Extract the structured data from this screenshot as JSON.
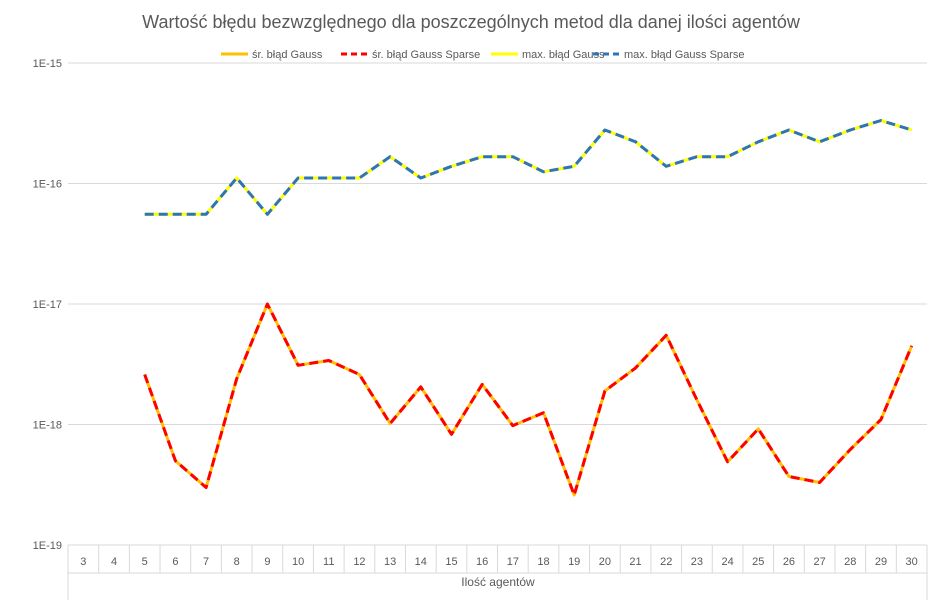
{
  "chart_data": {
    "type": "line",
    "title": "Wartość błędu bezwzględnego dla poszczególnych metod dla danej ilości agentów",
    "xlabel": "Ilość agentów",
    "ylabel": "",
    "y_scale": "log",
    "ylim": [
      1e-19,
      1e-15
    ],
    "y_tick_labels": [
      "1E-15",
      "1E-16",
      "1E-17",
      "1E-18",
      "1E-19"
    ],
    "grid": "horizontal",
    "legend": "top",
    "categories": [
      "3",
      "4",
      "5",
      "6",
      "7",
      "8",
      "9",
      "10",
      "11",
      "12",
      "13",
      "14",
      "15",
      "16",
      "17",
      "18",
      "19",
      "20",
      "21",
      "22",
      "23",
      "24",
      "25",
      "26",
      "27",
      "28",
      "29",
      "30"
    ],
    "series": [
      {
        "name": "śr. błąd Gauss",
        "color": "#FFC000",
        "dash": "solid",
        "values": [
          null,
          null,
          2.6e-18,
          5e-19,
          3e-19,
          2.4e-18,
          1e-17,
          3.1e-18,
          3.4e-18,
          2.6e-18,
          1.02e-18,
          2.05e-18,
          8.3e-19,
          2.15e-18,
          9.8e-19,
          1.25e-18,
          2.6e-19,
          1.9e-18,
          2.95e-18,
          5.5e-18,
          1.6e-18,
          4.9e-19,
          9.2e-19,
          3.7e-19,
          3.3e-19,
          6.2e-19,
          1.1e-18,
          4.5e-18
        ]
      },
      {
        "name": "śr. błąd Gauss Sparse",
        "color": "#FF0000",
        "dash": "dashed",
        "values": [
          null,
          null,
          2.6e-18,
          5e-19,
          3e-19,
          2.4e-18,
          1e-17,
          3.1e-18,
          3.4e-18,
          2.6e-18,
          1.02e-18,
          2.05e-18,
          8.3e-19,
          2.15e-18,
          9.8e-19,
          1.25e-18,
          2.6e-19,
          1.9e-18,
          2.95e-18,
          5.5e-18,
          1.6e-18,
          4.9e-19,
          9.2e-19,
          3.7e-19,
          3.3e-19,
          6.2e-19,
          1.1e-18,
          4.5e-18
        ]
      },
      {
        "name": "max. błąd Gauss",
        "color": "#FFFF00",
        "dash": "solid",
        "values": [
          null,
          null,
          5.55e-17,
          5.55e-17,
          5.55e-17,
          1.11e-16,
          5.55e-17,
          1.11e-16,
          1.11e-16,
          1.11e-16,
          1.67e-16,
          1.11e-16,
          1.39e-16,
          1.67e-16,
          1.67e-16,
          1.25e-16,
          1.39e-16,
          2.78e-16,
          2.22e-16,
          1.39e-16,
          1.67e-16,
          1.67e-16,
          2.22e-16,
          2.78e-16,
          2.22e-16,
          2.78e-16,
          3.33e-16,
          2.78e-16
        ]
      },
      {
        "name": "max. błąd Gauss Sparse",
        "color": "#2E75B6",
        "dash": "dashed",
        "values": [
          null,
          null,
          5.55e-17,
          5.55e-17,
          5.55e-17,
          1.11e-16,
          5.55e-17,
          1.11e-16,
          1.11e-16,
          1.11e-16,
          1.67e-16,
          1.11e-16,
          1.39e-16,
          1.67e-16,
          1.67e-16,
          1.25e-16,
          1.39e-16,
          2.78e-16,
          2.22e-16,
          1.39e-16,
          1.67e-16,
          1.67e-16,
          2.22e-16,
          2.78e-16,
          2.22e-16,
          2.78e-16,
          3.33e-16,
          2.78e-16
        ]
      }
    ]
  }
}
